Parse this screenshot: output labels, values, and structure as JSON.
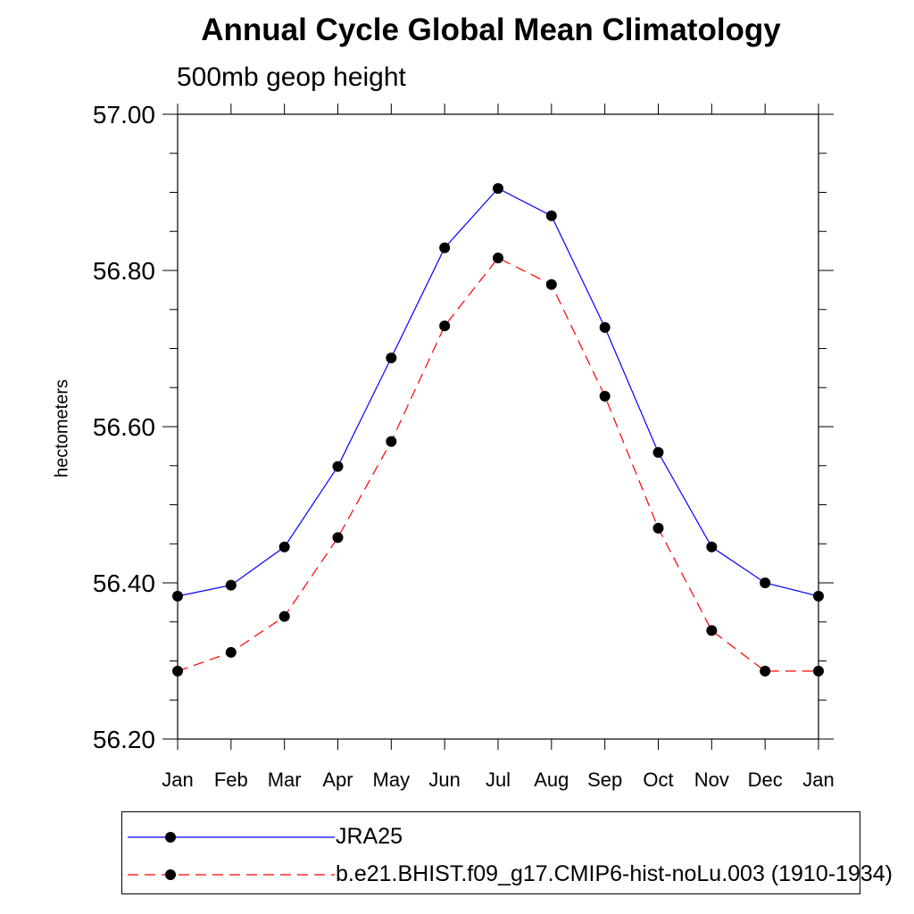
{
  "chart_data": {
    "type": "line",
    "title": "Annual Cycle Global Mean Climatology",
    "subtitle": "500mb geop height",
    "xlabel": "",
    "ylabel": "hectometers",
    "categories": [
      "Jan",
      "Feb",
      "Mar",
      "Apr",
      "May",
      "Jun",
      "Jul",
      "Aug",
      "Sep",
      "Oct",
      "Nov",
      "Dec",
      "Jan"
    ],
    "ylim": [
      56.2,
      57.0
    ],
    "yticks": [
      "56.20",
      "56.40",
      "56.60",
      "56.80",
      "57.00"
    ],
    "grid": false,
    "legend_position": "bottom",
    "series": [
      {
        "name": "JRA25",
        "color": "#0000ff",
        "line_style": "solid",
        "marker": "filled-circle",
        "values": [
          56.383,
          56.397,
          56.446,
          56.549,
          56.688,
          56.829,
          56.905,
          56.87,
          56.727,
          56.567,
          56.446,
          56.4,
          56.383
        ]
      },
      {
        "name": "b.e21.BHIST.f09_g17.CMIP6-hist-noLu.003 (1910-1934)",
        "color": "#ff0000",
        "line_style": "dashed",
        "marker": "filled-circle",
        "values": [
          56.287,
          56.311,
          56.357,
          56.458,
          56.581,
          56.729,
          56.816,
          56.782,
          56.639,
          56.47,
          56.339,
          56.287,
          56.287
        ]
      }
    ]
  }
}
